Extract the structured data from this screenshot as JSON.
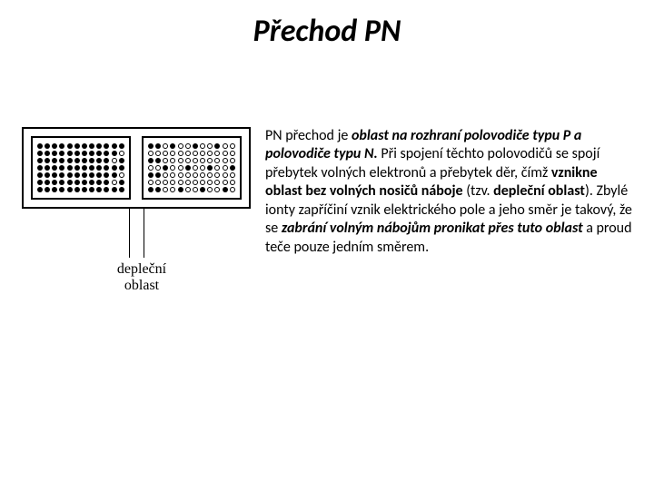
{
  "title": "Přechod PN",
  "diagram": {
    "label_line1": "depleční",
    "label_line2": "oblast",
    "rows": 7,
    "cols": 12,
    "p_ratio": 1.0,
    "n_ratio": 0.35,
    "colors": {
      "border": "#000000",
      "filled": "#000000",
      "hollow_border": "#000000",
      "bg": "#ffffff"
    }
  },
  "paragraph": {
    "runs": [
      {
        "text": "PN přechod je ",
        "style": ""
      },
      {
        "text": "oblast na rozhraní polovodiče typu P a polovodiče typu N.",
        "style": "bolditalic"
      },
      {
        "text": " Při spojení těchto polovodičů se spojí přebytek volných elektronů a přebytek děr, čímž ",
        "style": ""
      },
      {
        "text": "vznikne oblast bez volných nosičů náboje",
        "style": "bold"
      },
      {
        "text": " (tzv. ",
        "style": ""
      },
      {
        "text": "depleční oblast",
        "style": "bold"
      },
      {
        "text": "). Zbylé ionty zapříčiní vznik elektrického pole a jeho směr je takový, že se ",
        "style": ""
      },
      {
        "text": "zabrání volným nábojům pronikat přes tuto oblast",
        "style": "bolditalic"
      },
      {
        "text": " a proud teče pouze jedním směrem.",
        "style": ""
      }
    ]
  }
}
